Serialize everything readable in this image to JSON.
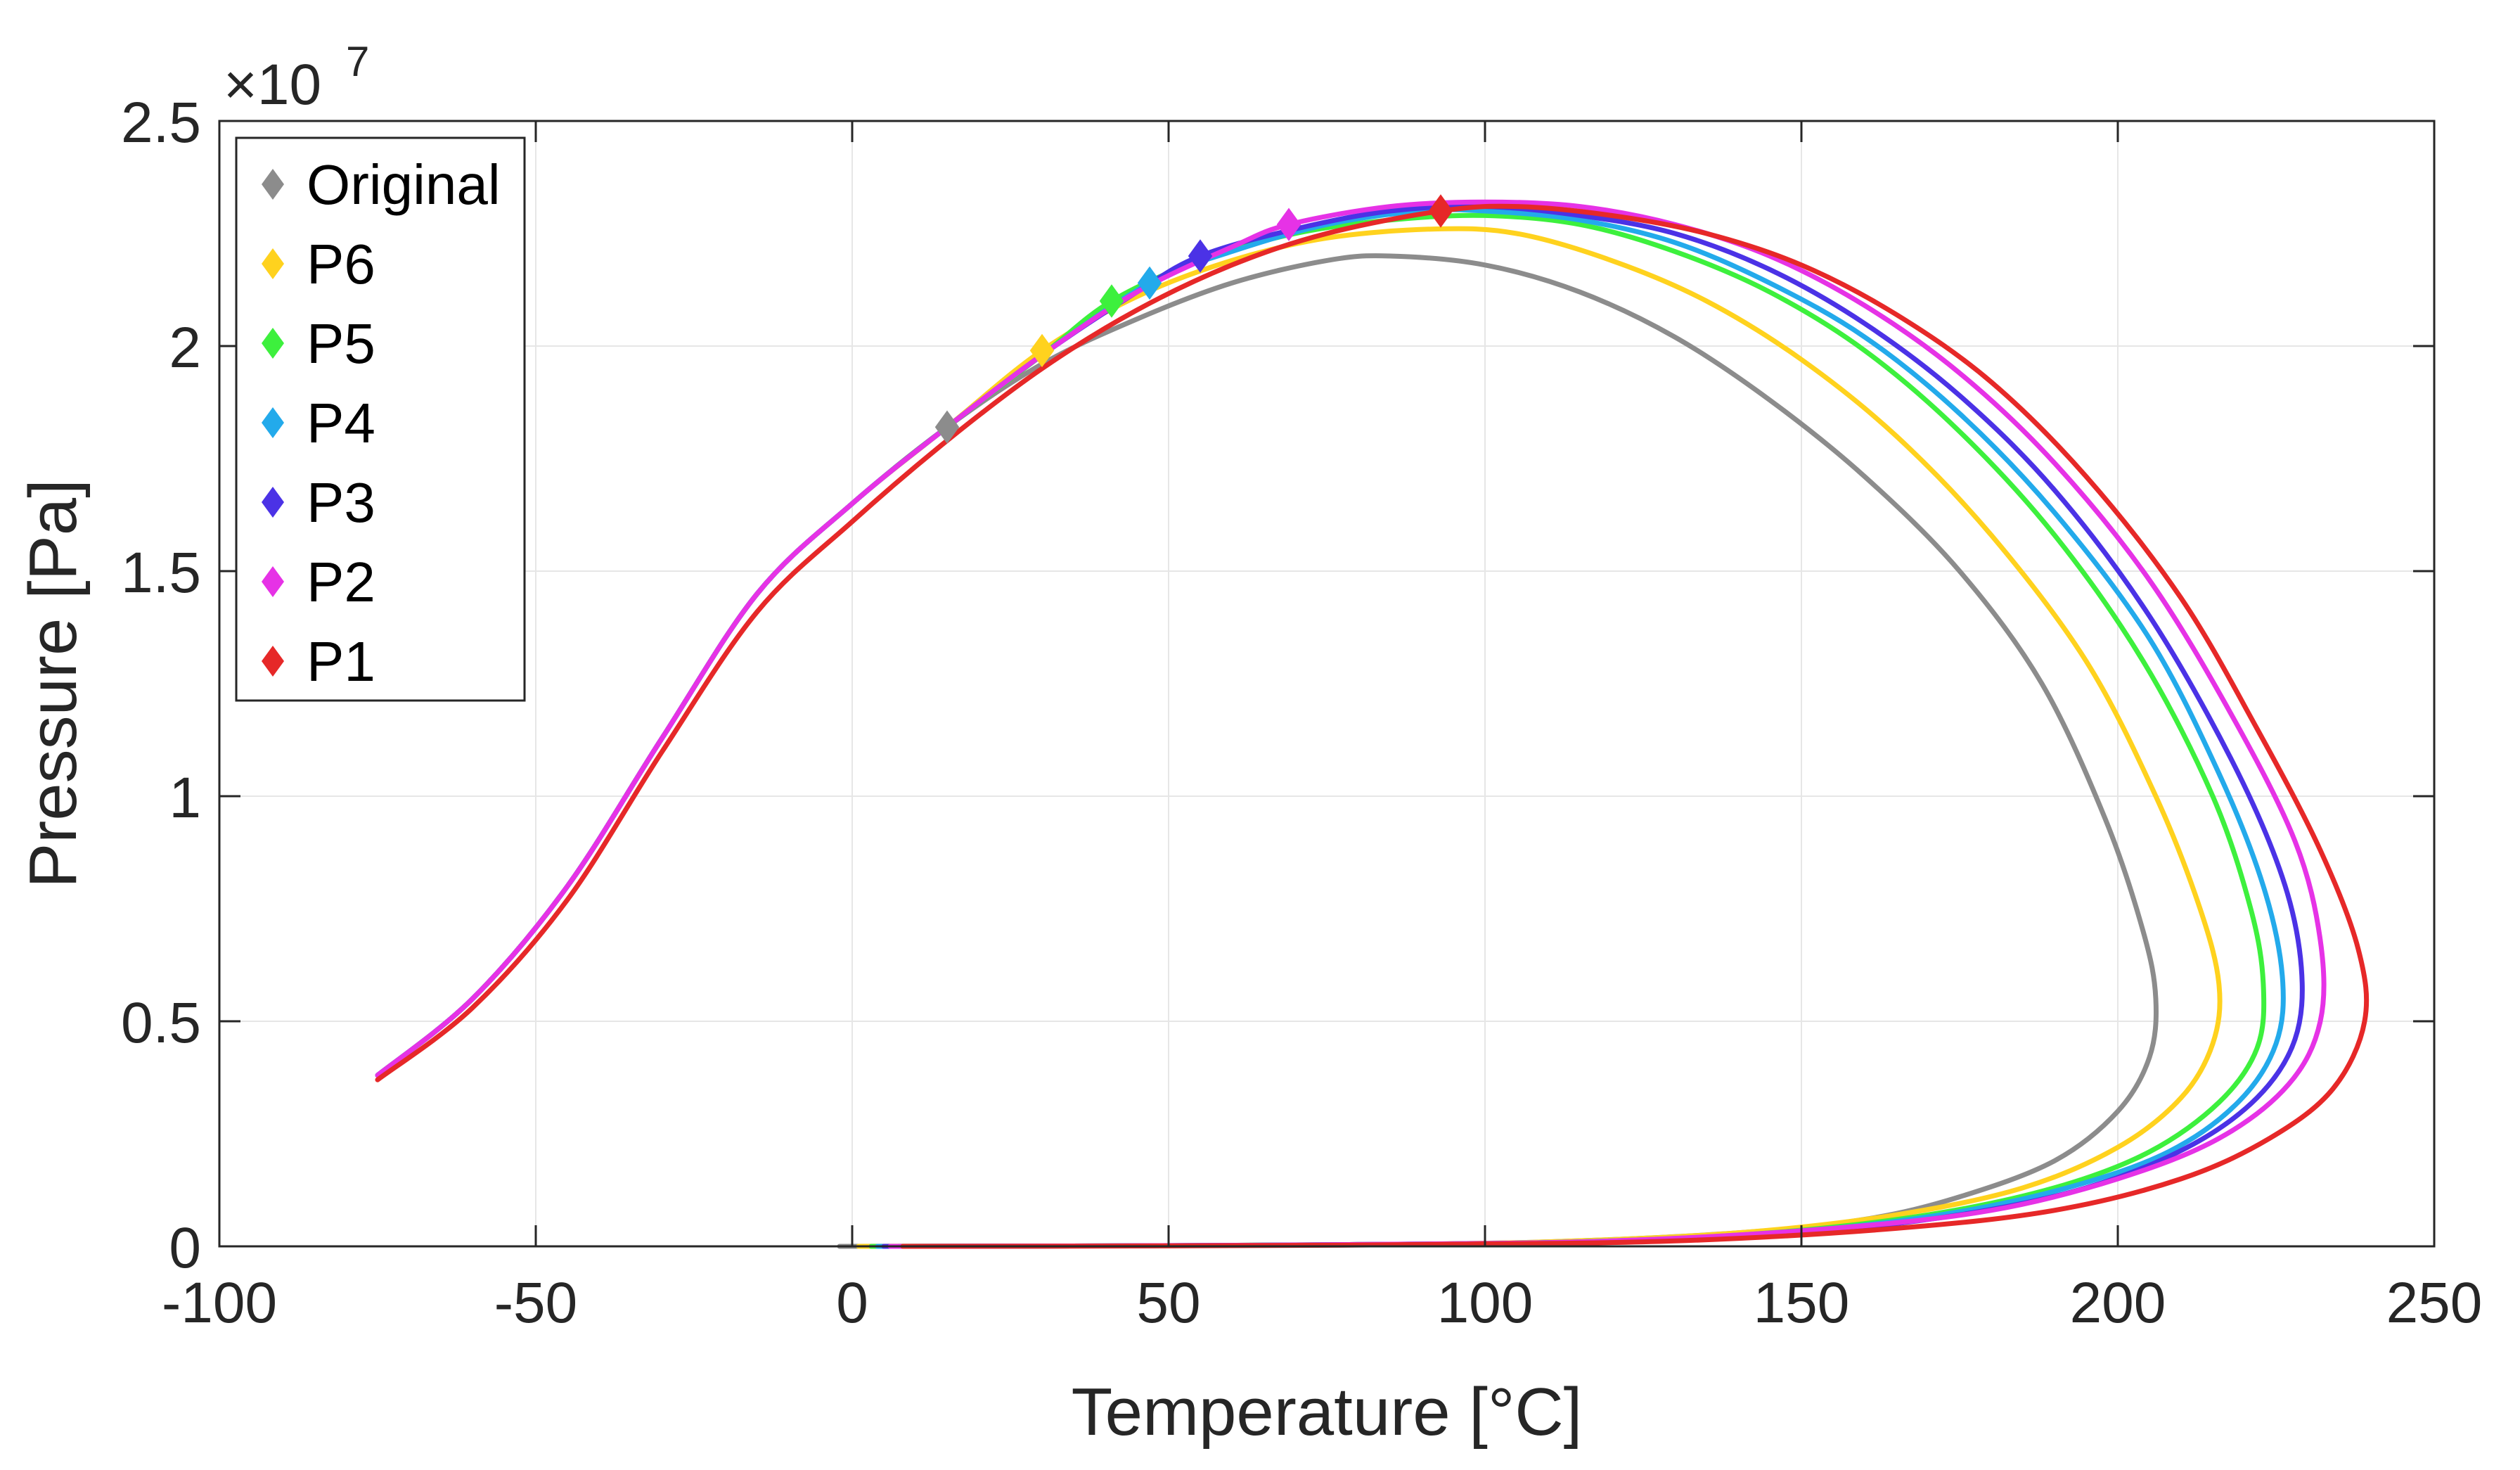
{
  "chart_data": {
    "type": "line",
    "title": "",
    "xlabel": "Temperature [°C]",
    "ylabel": "Pressure [Pa]",
    "xlim": [
      -100,
      250
    ],
    "ylim": [
      0,
      2.5
    ],
    "y_multiplier_base": "×10",
    "y_multiplier_exp": "7",
    "x_ticks": [
      -100,
      -50,
      0,
      50,
      100,
      150,
      200,
      250
    ],
    "x_tick_labels": [
      "-100",
      "-50",
      "0",
      "50",
      "100",
      "150",
      "200",
      "250"
    ],
    "y_ticks": [
      0,
      0.5,
      1,
      1.5,
      2,
      2.5
    ],
    "y_tick_labels": [
      "0",
      "0.5",
      "1",
      "1.5",
      "2",
      "2.5"
    ],
    "grid": true,
    "legend_position": "top-left",
    "series": [
      {
        "name": "Original",
        "color": "#8c8c8c",
        "marker": {
          "x": 15,
          "y": 1.82
        },
        "dew_curve": [
          [
            -75,
            0.38
          ],
          [
            -60,
            0.55
          ],
          [
            -45,
            0.8
          ],
          [
            -30,
            1.13
          ],
          [
            -15,
            1.45
          ],
          [
            0,
            1.65
          ],
          [
            15,
            1.82
          ],
          [
            30,
            1.96
          ],
          [
            45,
            2.06
          ],
          [
            60,
            2.14
          ],
          [
            75,
            2.19
          ],
          [
            85,
            2.2
          ],
          [
            100,
            2.18
          ],
          [
            115,
            2.12
          ],
          [
            130,
            2.02
          ],
          [
            145,
            1.88
          ],
          [
            160,
            1.71
          ],
          [
            175,
            1.5
          ],
          [
            188,
            1.25
          ],
          [
            198,
            0.95
          ],
          [
            204,
            0.7
          ],
          [
            206,
            0.55
          ],
          [
            205,
            0.42
          ],
          [
            200,
            0.3
          ],
          [
            190,
            0.19
          ],
          [
            175,
            0.11
          ],
          [
            160,
            0.06
          ],
          [
            140,
            0.03
          ],
          [
            110,
            0.01
          ],
          [
            80,
            0.004
          ],
          [
            40,
            0.001
          ],
          [
            -2,
            0
          ]
        ]
      },
      {
        "name": "P6",
        "color": "#ffd21e",
        "marker": {
          "x": 30,
          "y": 1.99
        },
        "dew_curve": [
          [
            -75,
            0.38
          ],
          [
            -60,
            0.55
          ],
          [
            -45,
            0.8
          ],
          [
            -30,
            1.13
          ],
          [
            -15,
            1.45
          ],
          [
            0,
            1.65
          ],
          [
            15,
            1.82
          ],
          [
            30,
            1.99
          ],
          [
            45,
            2.11
          ],
          [
            60,
            2.19
          ],
          [
            75,
            2.24
          ],
          [
            92,
            2.26
          ],
          [
            105,
            2.25
          ],
          [
            120,
            2.19
          ],
          [
            135,
            2.1
          ],
          [
            150,
            1.97
          ],
          [
            165,
            1.8
          ],
          [
            180,
            1.58
          ],
          [
            195,
            1.3
          ],
          [
            206,
            1.0
          ],
          [
            213,
            0.75
          ],
          [
            216,
            0.58
          ],
          [
            215,
            0.45
          ],
          [
            210,
            0.33
          ],
          [
            200,
            0.22
          ],
          [
            185,
            0.13
          ],
          [
            165,
            0.07
          ],
          [
            140,
            0.03
          ],
          [
            110,
            0.01
          ],
          [
            80,
            0.004
          ],
          [
            40,
            0.001
          ],
          [
            1,
            0
          ]
        ]
      },
      {
        "name": "P5",
        "color": "#3df03d",
        "marker": {
          "x": 41,
          "y": 2.1
        },
        "dew_curve": [
          [
            -75,
            0.38
          ],
          [
            -60,
            0.55
          ],
          [
            -45,
            0.8
          ],
          [
            -30,
            1.13
          ],
          [
            -15,
            1.45
          ],
          [
            0,
            1.65
          ],
          [
            15,
            1.82
          ],
          [
            30,
            1.98
          ],
          [
            41,
            2.1
          ],
          [
            55,
            2.19
          ],
          [
            70,
            2.25
          ],
          [
            85,
            2.28
          ],
          [
            100,
            2.29
          ],
          [
            115,
            2.27
          ],
          [
            130,
            2.21
          ],
          [
            145,
            2.12
          ],
          [
            160,
            1.99
          ],
          [
            175,
            1.81
          ],
          [
            190,
            1.58
          ],
          [
            204,
            1.3
          ],
          [
            215,
            1.0
          ],
          [
            221,
            0.75
          ],
          [
            223,
            0.58
          ],
          [
            222,
            0.44
          ],
          [
            216,
            0.32
          ],
          [
            205,
            0.21
          ],
          [
            190,
            0.13
          ],
          [
            170,
            0.07
          ],
          [
            145,
            0.03
          ],
          [
            115,
            0.01
          ],
          [
            80,
            0.004
          ],
          [
            40,
            0.001
          ],
          [
            3,
            0
          ]
        ]
      },
      {
        "name": "P4",
        "color": "#23aaeb",
        "marker": {
          "x": 47,
          "y": 2.14
        },
        "dew_curve": [
          [
            -75,
            0.38
          ],
          [
            -60,
            0.55
          ],
          [
            -45,
            0.8
          ],
          [
            -30,
            1.13
          ],
          [
            -15,
            1.45
          ],
          [
            0,
            1.65
          ],
          [
            15,
            1.82
          ],
          [
            30,
            1.98
          ],
          [
            47,
            2.14
          ],
          [
            60,
            2.21
          ],
          [
            75,
            2.27
          ],
          [
            90,
            2.3
          ],
          [
            100,
            2.3
          ],
          [
            115,
            2.28
          ],
          [
            130,
            2.23
          ],
          [
            145,
            2.14
          ],
          [
            160,
            2.02
          ],
          [
            175,
            1.85
          ],
          [
            190,
            1.63
          ],
          [
            205,
            1.35
          ],
          [
            216,
            1.05
          ],
          [
            223,
            0.8
          ],
          [
            226,
            0.6
          ],
          [
            225,
            0.45
          ],
          [
            219,
            0.32
          ],
          [
            208,
            0.21
          ],
          [
            192,
            0.13
          ],
          [
            172,
            0.07
          ],
          [
            147,
            0.03
          ],
          [
            115,
            0.01
          ],
          [
            80,
            0.004
          ],
          [
            40,
            0.001
          ],
          [
            4,
            0
          ]
        ]
      },
      {
        "name": "P3",
        "color": "#4b32e6",
        "marker": {
          "x": 55,
          "y": 2.2
        },
        "dew_curve": [
          [
            -75,
            0.38
          ],
          [
            -60,
            0.55
          ],
          [
            -45,
            0.8
          ],
          [
            -30,
            1.13
          ],
          [
            -15,
            1.45
          ],
          [
            0,
            1.65
          ],
          [
            15,
            1.82
          ],
          [
            30,
            1.98
          ],
          [
            45,
            2.12
          ],
          [
            55,
            2.2
          ],
          [
            70,
            2.26
          ],
          [
            85,
            2.3
          ],
          [
            100,
            2.31
          ],
          [
            115,
            2.29
          ],
          [
            130,
            2.25
          ],
          [
            145,
            2.17
          ],
          [
            160,
            2.05
          ],
          [
            175,
            1.89
          ],
          [
            190,
            1.68
          ],
          [
            205,
            1.4
          ],
          [
            218,
            1.08
          ],
          [
            226,
            0.82
          ],
          [
            229,
            0.62
          ],
          [
            228,
            0.46
          ],
          [
            222,
            0.33
          ],
          [
            211,
            0.22
          ],
          [
            195,
            0.13
          ],
          [
            175,
            0.07
          ],
          [
            150,
            0.03
          ],
          [
            118,
            0.01
          ],
          [
            80,
            0.004
          ],
          [
            40,
            0.001
          ],
          [
            5,
            0
          ]
        ]
      },
      {
        "name": "P2",
        "color": "#e632e6",
        "marker": {
          "x": 69,
          "y": 2.27
        },
        "dew_curve": [
          [
            -75,
            0.38
          ],
          [
            -60,
            0.55
          ],
          [
            -45,
            0.8
          ],
          [
            -30,
            1.13
          ],
          [
            -15,
            1.45
          ],
          [
            0,
            1.65
          ],
          [
            15,
            1.82
          ],
          [
            30,
            1.98
          ],
          [
            45,
            2.12
          ],
          [
            60,
            2.22
          ],
          [
            69,
            2.27
          ],
          [
            85,
            2.31
          ],
          [
            100,
            2.32
          ],
          [
            115,
            2.31
          ],
          [
            130,
            2.27
          ],
          [
            145,
            2.2
          ],
          [
            160,
            2.09
          ],
          [
            175,
            1.94
          ],
          [
            190,
            1.74
          ],
          [
            205,
            1.48
          ],
          [
            218,
            1.18
          ],
          [
            228,
            0.9
          ],
          [
            232,
            0.68
          ],
          [
            232,
            0.5
          ],
          [
            227,
            0.36
          ],
          [
            216,
            0.24
          ],
          [
            200,
            0.15
          ],
          [
            180,
            0.08
          ],
          [
            155,
            0.04
          ],
          [
            120,
            0.012
          ],
          [
            80,
            0.004
          ],
          [
            40,
            0.001
          ],
          [
            6,
            0
          ]
        ]
      },
      {
        "name": "P1",
        "color": "#e62828",
        "marker": {
          "x": 93,
          "y": 2.3
        },
        "dew_curve": [
          [
            -75,
            0.37
          ],
          [
            -60,
            0.53
          ],
          [
            -45,
            0.77
          ],
          [
            -30,
            1.1
          ],
          [
            -15,
            1.41
          ],
          [
            0,
            1.61
          ],
          [
            15,
            1.79
          ],
          [
            30,
            1.95
          ],
          [
            45,
            2.08
          ],
          [
            60,
            2.18
          ],
          [
            75,
            2.25
          ],
          [
            93,
            2.3
          ],
          [
            105,
            2.31
          ],
          [
            120,
            2.29
          ],
          [
            135,
            2.25
          ],
          [
            150,
            2.18
          ],
          [
            165,
            2.07
          ],
          [
            180,
            1.92
          ],
          [
            195,
            1.71
          ],
          [
            210,
            1.44
          ],
          [
            222,
            1.15
          ],
          [
            232,
            0.88
          ],
          [
            238,
            0.66
          ],
          [
            239,
            0.5
          ],
          [
            234,
            0.35
          ],
          [
            224,
            0.24
          ],
          [
            210,
            0.15
          ],
          [
            190,
            0.08
          ],
          [
            165,
            0.04
          ],
          [
            130,
            0.012
          ],
          [
            90,
            0.004
          ],
          [
            50,
            0.001
          ],
          [
            8,
            0
          ]
        ]
      }
    ]
  }
}
